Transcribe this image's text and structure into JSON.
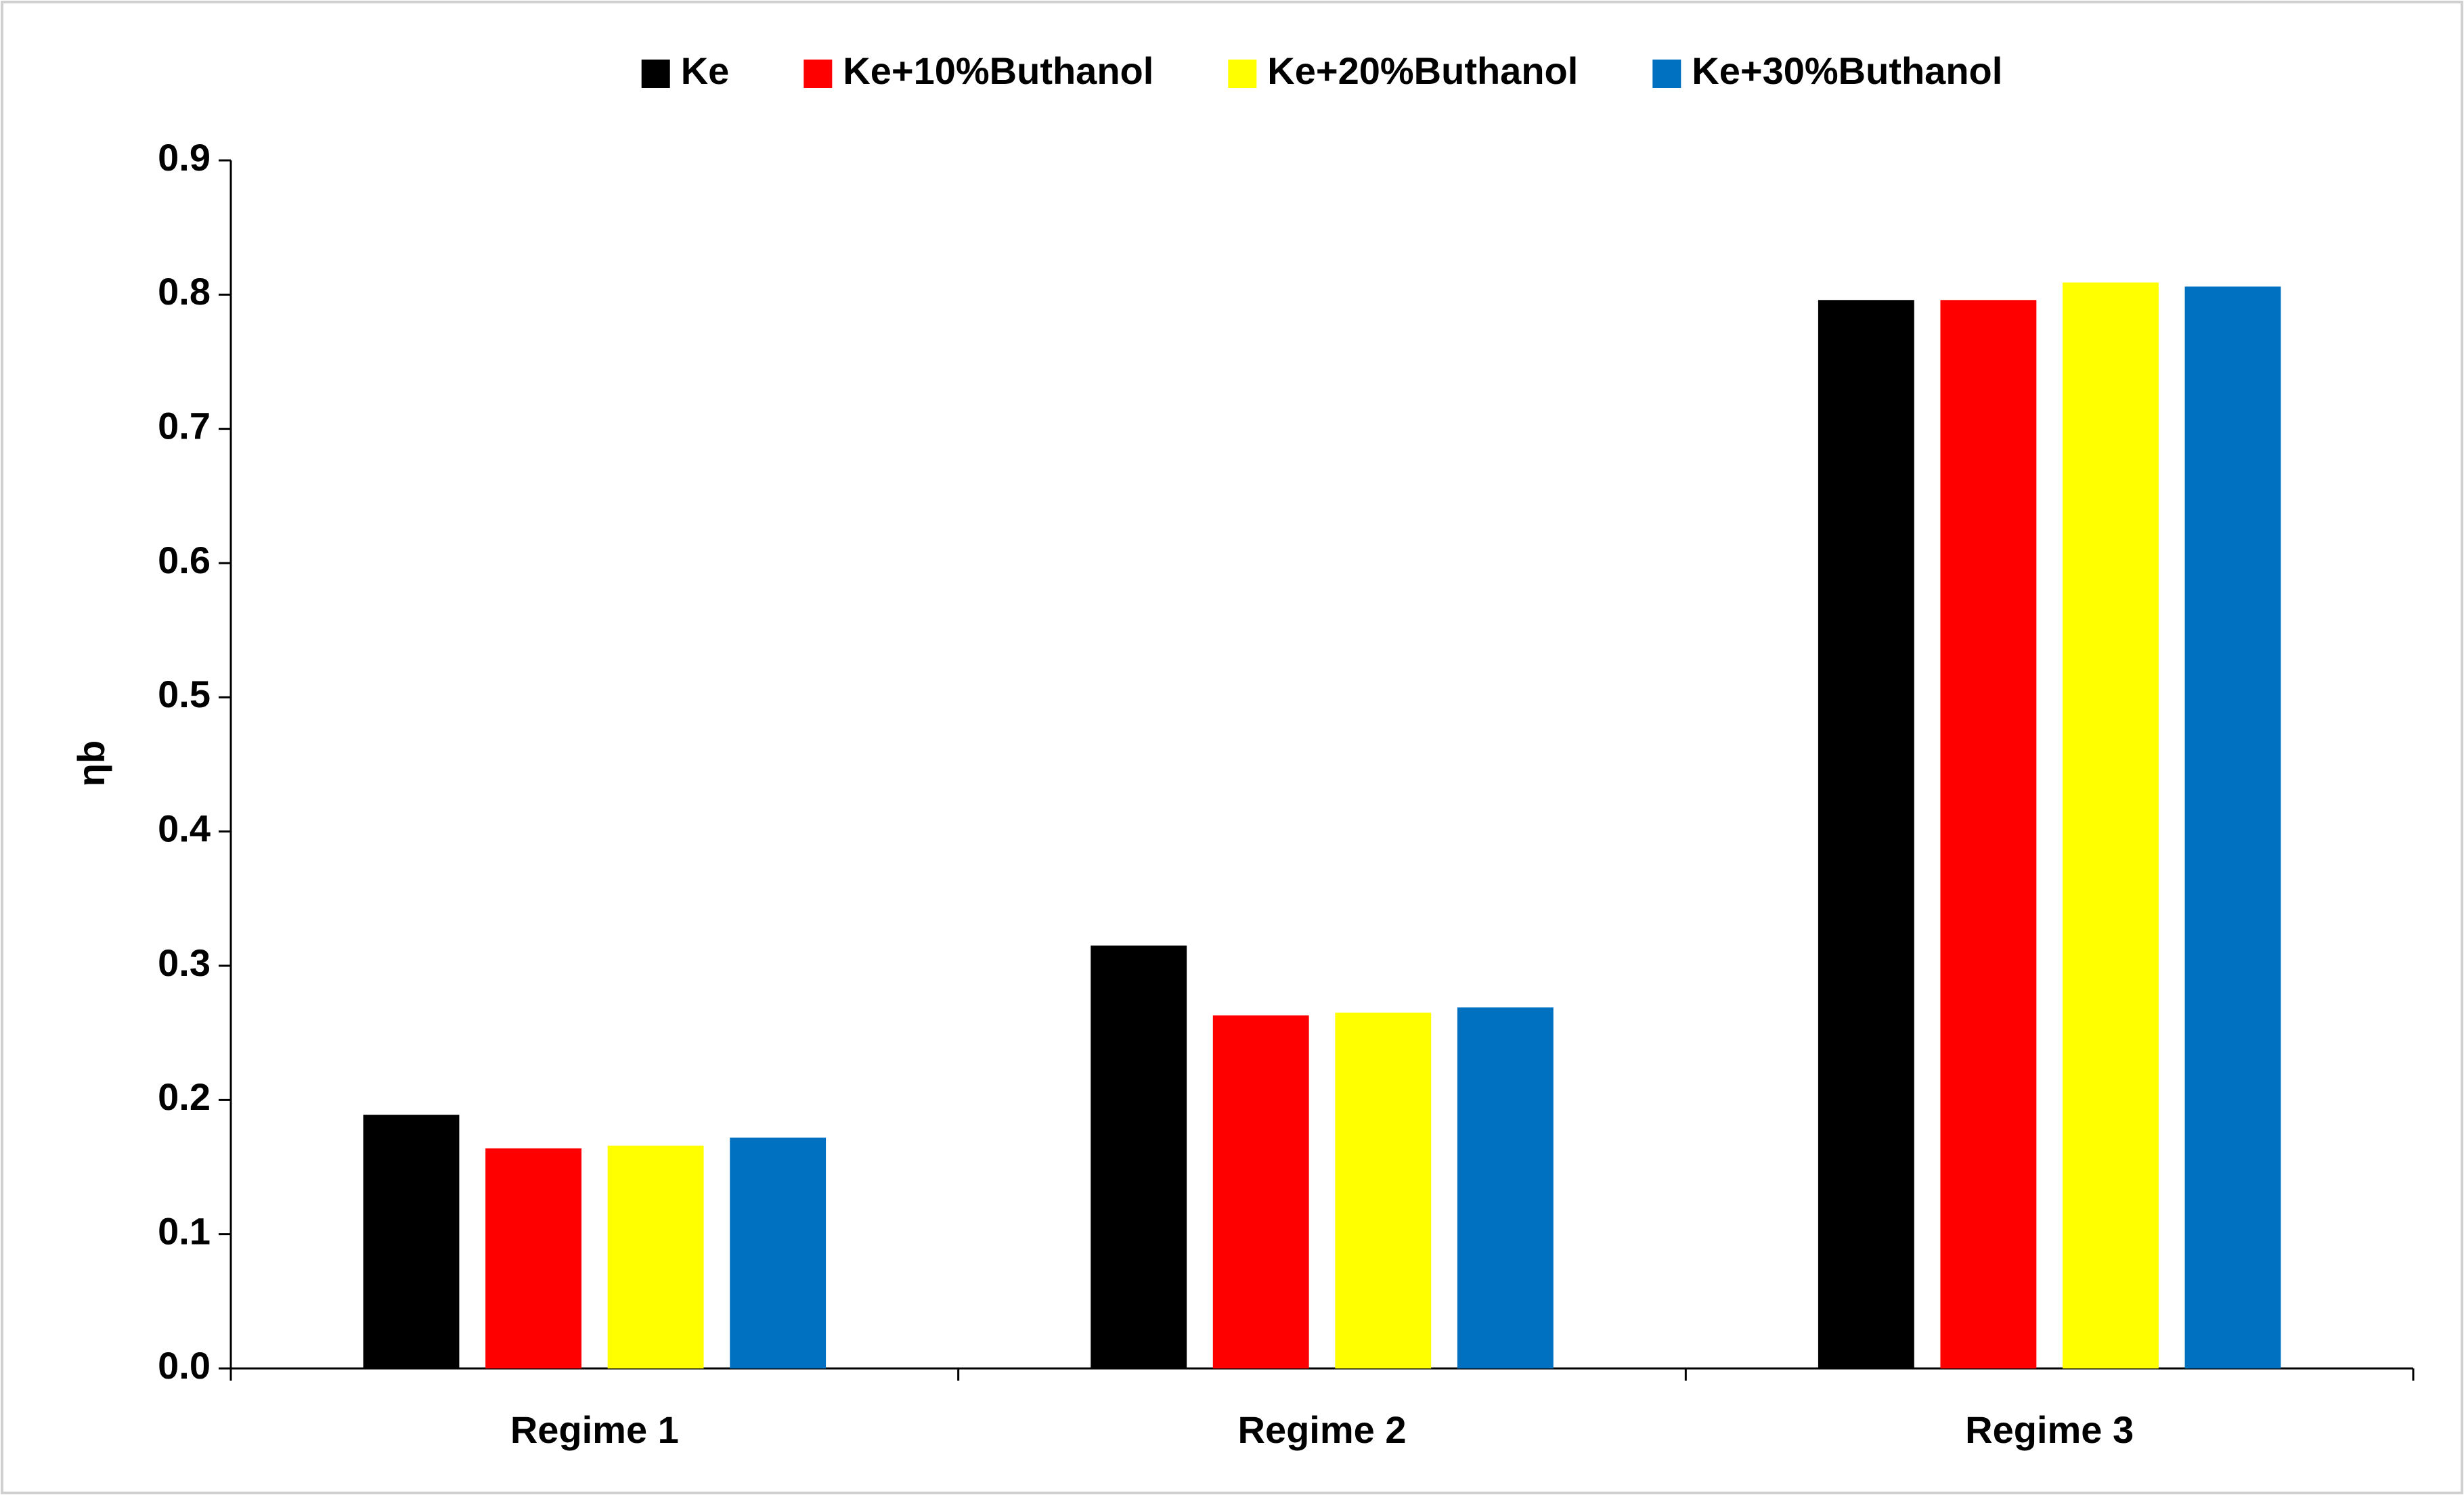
{
  "chart_data": {
    "type": "bar",
    "y_label": "ηb",
    "categories": [
      "Regime 1",
      "Regime 2",
      "Regime 3"
    ],
    "series": [
      {
        "name": "Ke",
        "color": "#000000",
        "values": [
          0.189,
          0.315,
          0.796
        ]
      },
      {
        "name": "Ke+10%Buthanol",
        "color": "#ff0000",
        "values": [
          0.164,
          0.263,
          0.796
        ]
      },
      {
        "name": "Ke+20%Buthanol",
        "color": "#ffff00",
        "values": [
          0.166,
          0.265,
          0.809
        ]
      },
      {
        "name": "Ke+30%Buthanol",
        "color": "#0070c0",
        "values": [
          0.172,
          0.269,
          0.806
        ]
      }
    ],
    "ylim": [
      0,
      0.9
    ],
    "yticks": [
      {
        "value": 0,
        "label": "0.0"
      },
      0.1,
      0.2,
      0.3,
      0.4,
      0.5,
      0.6,
      0.7,
      0.8,
      0.9
    ],
    "legend": "top",
    "grid": false
  }
}
